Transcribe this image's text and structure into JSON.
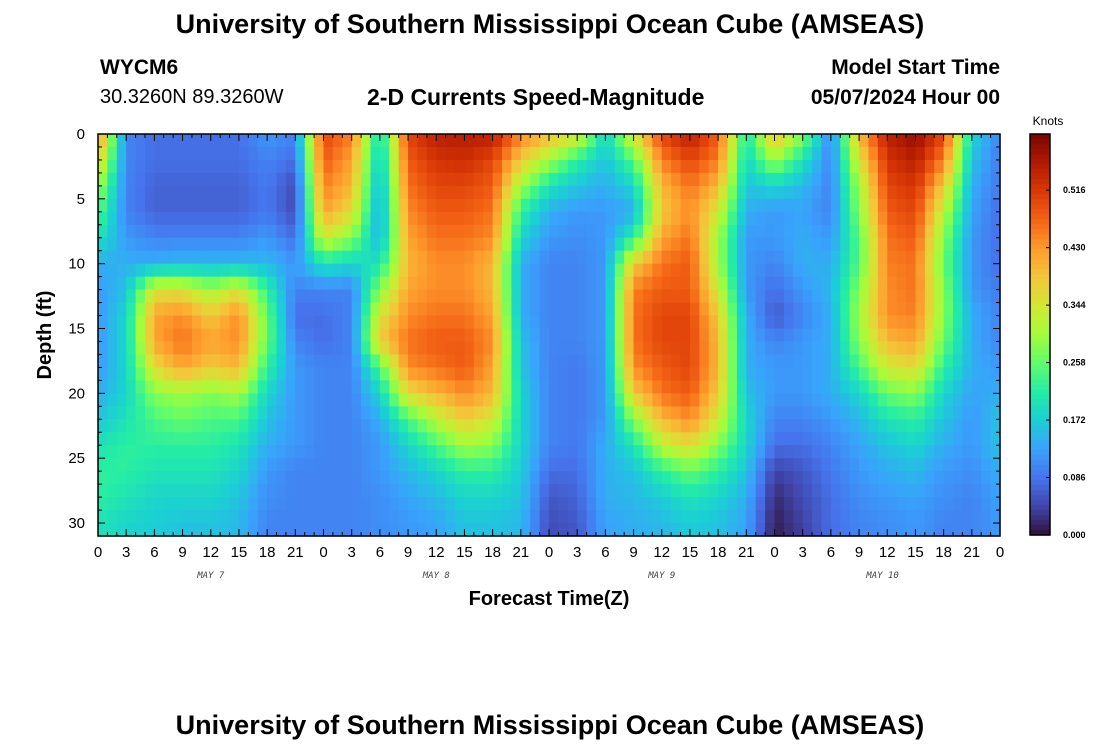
{
  "header": {
    "title": "University of Southern Mississippi Ocean Cube (AMSEAS)",
    "station_id": "WYCM6",
    "station_coords": "30.3260N  89.3260W",
    "subtitle": "2-D Currents Speed-Magnitude",
    "model_start_label": "Model Start Time",
    "model_start_value": "05/07/2024 Hour 00"
  },
  "footer": {
    "title": "University of Southern Mississippi Ocean Cube (AMSEAS)"
  },
  "colors": {
    "background": "#ffffff",
    "axis": "#000000",
    "colormap": [
      "#30123b",
      "#4145ab",
      "#4675ed",
      "#39a2fc",
      "#1bcfd4",
      "#24eca6",
      "#61fc6c",
      "#a4fc3b",
      "#d1e834",
      "#f3c63a",
      "#fe9b2d",
      "#f36315",
      "#d93806",
      "#b11901",
      "#7a0402"
    ]
  },
  "chart_data": {
    "type": "heatmap",
    "title": "2-D Currents Speed-Magnitude",
    "xlabel": "Forecast Time(Z)",
    "ylabel": "Depth (ft)",
    "x_unit": "forecast hours from 05/07/2024 Hour 00",
    "x_range": [
      0,
      96
    ],
    "y_range": [
      0,
      31
    ],
    "y_inverted": true,
    "x_tick_labels": [
      "0",
      "3",
      "6",
      "9",
      "12",
      "15",
      "18",
      "21",
      "0",
      "3",
      "6",
      "9",
      "12",
      "15",
      "18",
      "21",
      "0",
      "3",
      "6",
      "9",
      "12",
      "15",
      "18",
      "21",
      "0",
      "3",
      "6",
      "9",
      "12",
      "15",
      "18",
      "21",
      "0"
    ],
    "day_labels": [
      {
        "label": "MAY 7",
        "hour": 12
      },
      {
        "label": "MAY 8",
        "hour": 36
      },
      {
        "label": "MAY 9",
        "hour": 60
      },
      {
        "label": "MAY 10",
        "hour": 83.5
      }
    ],
    "y_ticks": [
      0,
      5,
      10,
      15,
      20,
      25,
      30
    ],
    "colorbar": {
      "title": "Knots",
      "ticks": [
        "0.000",
        "0.086",
        "0.172",
        "0.258",
        "0.344",
        "0.430",
        "0.516"
      ],
      "min": 0.0,
      "max": 0.6
    },
    "depths_ft": [
      0,
      2,
      4,
      6,
      8,
      10,
      12,
      14,
      16,
      18,
      20,
      22,
      24,
      26,
      28,
      30
    ],
    "hours": [
      0,
      3,
      6,
      9,
      12,
      15,
      18,
      21,
      24,
      27,
      30,
      33,
      36,
      39,
      42,
      45,
      48,
      51,
      54,
      57,
      60,
      63,
      66,
      69,
      72,
      75,
      78,
      81,
      84,
      87,
      90,
      93,
      96
    ],
    "speed_knots": [
      [
        0.45,
        0.1,
        0.08,
        0.08,
        0.08,
        0.08,
        0.12,
        0.1,
        0.5,
        0.45,
        0.18,
        0.5,
        0.55,
        0.55,
        0.55,
        0.45,
        0.4,
        0.35,
        0.18,
        0.35,
        0.5,
        0.55,
        0.48,
        0.2,
        0.4,
        0.28,
        0.1,
        0.4,
        0.55,
        0.58,
        0.5,
        0.18,
        0.1
      ],
      [
        0.38,
        0.1,
        0.08,
        0.08,
        0.08,
        0.08,
        0.1,
        0.08,
        0.48,
        0.42,
        0.16,
        0.48,
        0.52,
        0.53,
        0.5,
        0.38,
        0.3,
        0.22,
        0.16,
        0.25,
        0.45,
        0.5,
        0.45,
        0.18,
        0.3,
        0.2,
        0.1,
        0.35,
        0.52,
        0.55,
        0.45,
        0.16,
        0.09
      ],
      [
        0.3,
        0.1,
        0.07,
        0.07,
        0.07,
        0.07,
        0.09,
        0.05,
        0.45,
        0.4,
        0.14,
        0.46,
        0.5,
        0.5,
        0.48,
        0.3,
        0.2,
        0.16,
        0.14,
        0.18,
        0.4,
        0.46,
        0.4,
        0.16,
        0.18,
        0.15,
        0.1,
        0.3,
        0.5,
        0.52,
        0.38,
        0.14,
        0.09
      ],
      [
        0.25,
        0.1,
        0.07,
        0.07,
        0.07,
        0.07,
        0.09,
        0.05,
        0.42,
        0.36,
        0.13,
        0.44,
        0.48,
        0.48,
        0.46,
        0.22,
        0.14,
        0.12,
        0.12,
        0.14,
        0.38,
        0.44,
        0.34,
        0.14,
        0.12,
        0.13,
        0.1,
        0.28,
        0.48,
        0.5,
        0.32,
        0.13,
        0.08
      ],
      [
        0.2,
        0.12,
        0.1,
        0.1,
        0.1,
        0.1,
        0.12,
        0.08,
        0.34,
        0.28,
        0.14,
        0.42,
        0.46,
        0.46,
        0.44,
        0.18,
        0.12,
        0.11,
        0.12,
        0.22,
        0.42,
        0.46,
        0.3,
        0.12,
        0.12,
        0.14,
        0.12,
        0.25,
        0.46,
        0.48,
        0.28,
        0.12,
        0.08
      ],
      [
        0.14,
        0.14,
        0.14,
        0.15,
        0.15,
        0.15,
        0.15,
        0.12,
        0.2,
        0.18,
        0.2,
        0.4,
        0.44,
        0.44,
        0.4,
        0.14,
        0.1,
        0.1,
        0.12,
        0.38,
        0.46,
        0.48,
        0.3,
        0.12,
        0.1,
        0.14,
        0.14,
        0.25,
        0.45,
        0.46,
        0.26,
        0.12,
        0.08
      ],
      [
        0.12,
        0.16,
        0.35,
        0.35,
        0.3,
        0.35,
        0.22,
        0.1,
        0.1,
        0.1,
        0.28,
        0.42,
        0.44,
        0.44,
        0.4,
        0.14,
        0.1,
        0.1,
        0.12,
        0.45,
        0.48,
        0.48,
        0.34,
        0.12,
        0.08,
        0.12,
        0.15,
        0.28,
        0.44,
        0.46,
        0.28,
        0.12,
        0.09
      ],
      [
        0.12,
        0.18,
        0.42,
        0.44,
        0.38,
        0.44,
        0.26,
        0.08,
        0.08,
        0.1,
        0.35,
        0.44,
        0.46,
        0.46,
        0.42,
        0.14,
        0.1,
        0.1,
        0.12,
        0.46,
        0.5,
        0.5,
        0.38,
        0.14,
        0.06,
        0.1,
        0.14,
        0.3,
        0.44,
        0.45,
        0.28,
        0.14,
        0.1
      ],
      [
        0.12,
        0.18,
        0.42,
        0.46,
        0.42,
        0.44,
        0.26,
        0.1,
        0.08,
        0.1,
        0.38,
        0.46,
        0.48,
        0.48,
        0.44,
        0.16,
        0.1,
        0.1,
        0.12,
        0.46,
        0.5,
        0.5,
        0.4,
        0.14,
        0.1,
        0.12,
        0.14,
        0.28,
        0.4,
        0.42,
        0.26,
        0.14,
        0.1
      ],
      [
        0.12,
        0.18,
        0.36,
        0.42,
        0.38,
        0.4,
        0.22,
        0.12,
        0.1,
        0.1,
        0.24,
        0.44,
        0.46,
        0.48,
        0.42,
        0.16,
        0.1,
        0.09,
        0.12,
        0.44,
        0.48,
        0.5,
        0.4,
        0.14,
        0.12,
        0.12,
        0.14,
        0.24,
        0.34,
        0.36,
        0.22,
        0.14,
        0.12
      ],
      [
        0.14,
        0.18,
        0.28,
        0.3,
        0.28,
        0.3,
        0.18,
        0.12,
        0.1,
        0.1,
        0.18,
        0.36,
        0.4,
        0.44,
        0.4,
        0.18,
        0.1,
        0.09,
        0.12,
        0.38,
        0.46,
        0.48,
        0.38,
        0.16,
        0.12,
        0.12,
        0.14,
        0.18,
        0.26,
        0.28,
        0.18,
        0.13,
        0.14
      ],
      [
        0.16,
        0.2,
        0.24,
        0.26,
        0.24,
        0.24,
        0.16,
        0.12,
        0.1,
        0.1,
        0.14,
        0.24,
        0.32,
        0.38,
        0.34,
        0.18,
        0.1,
        0.09,
        0.12,
        0.28,
        0.4,
        0.44,
        0.34,
        0.18,
        0.1,
        0.1,
        0.12,
        0.15,
        0.2,
        0.22,
        0.16,
        0.12,
        0.16
      ],
      [
        0.2,
        0.22,
        0.22,
        0.22,
        0.22,
        0.2,
        0.14,
        0.12,
        0.1,
        0.1,
        0.12,
        0.18,
        0.24,
        0.3,
        0.28,
        0.18,
        0.1,
        0.09,
        0.14,
        0.2,
        0.32,
        0.36,
        0.28,
        0.18,
        0.08,
        0.08,
        0.1,
        0.13,
        0.16,
        0.18,
        0.14,
        0.12,
        0.16
      ],
      [
        0.22,
        0.22,
        0.2,
        0.2,
        0.2,
        0.18,
        0.12,
        0.1,
        0.1,
        0.1,
        0.12,
        0.15,
        0.18,
        0.22,
        0.22,
        0.17,
        0.08,
        0.08,
        0.14,
        0.16,
        0.22,
        0.26,
        0.22,
        0.16,
        0.04,
        0.06,
        0.09,
        0.12,
        0.14,
        0.15,
        0.12,
        0.11,
        0.14
      ],
      [
        0.22,
        0.2,
        0.18,
        0.18,
        0.18,
        0.16,
        0.11,
        0.1,
        0.1,
        0.1,
        0.11,
        0.13,
        0.15,
        0.18,
        0.18,
        0.16,
        0.06,
        0.07,
        0.14,
        0.15,
        0.17,
        0.2,
        0.18,
        0.14,
        0.02,
        0.05,
        0.08,
        0.11,
        0.12,
        0.13,
        0.11,
        0.1,
        0.13
      ],
      [
        0.2,
        0.18,
        0.17,
        0.16,
        0.16,
        0.15,
        0.1,
        0.1,
        0.1,
        0.1,
        0.11,
        0.12,
        0.13,
        0.16,
        0.16,
        0.15,
        0.05,
        0.06,
        0.13,
        0.14,
        0.15,
        0.17,
        0.16,
        0.13,
        0.01,
        0.04,
        0.08,
        0.1,
        0.11,
        0.12,
        0.1,
        0.1,
        0.12
      ]
    ]
  }
}
